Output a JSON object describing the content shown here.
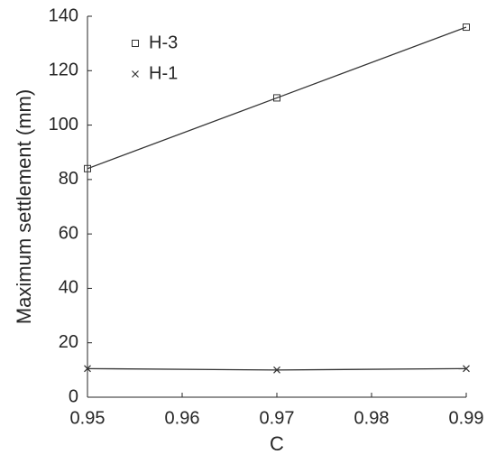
{
  "chart_data": {
    "type": "line",
    "xlabel": "C",
    "ylabel": "Maximum settlement (mm)",
    "x": [
      0.95,
      0.97,
      0.99
    ],
    "series": [
      {
        "name": "H-3",
        "color": "#333333",
        "marker": "square",
        "values": [
          84,
          110,
          136
        ]
      },
      {
        "name": "H-1",
        "color": "#333333",
        "marker": "x",
        "values": [
          10.5,
          10,
          10.5
        ]
      }
    ],
    "xlim": [
      0.95,
      0.99
    ],
    "xticks": [
      0.95,
      0.96,
      0.97,
      0.98,
      0.99
    ],
    "ylim": [
      0,
      140
    ],
    "yticks": [
      0,
      20,
      40,
      60,
      80,
      100,
      120,
      140
    ],
    "grid": false,
    "legend": "upper left"
  }
}
